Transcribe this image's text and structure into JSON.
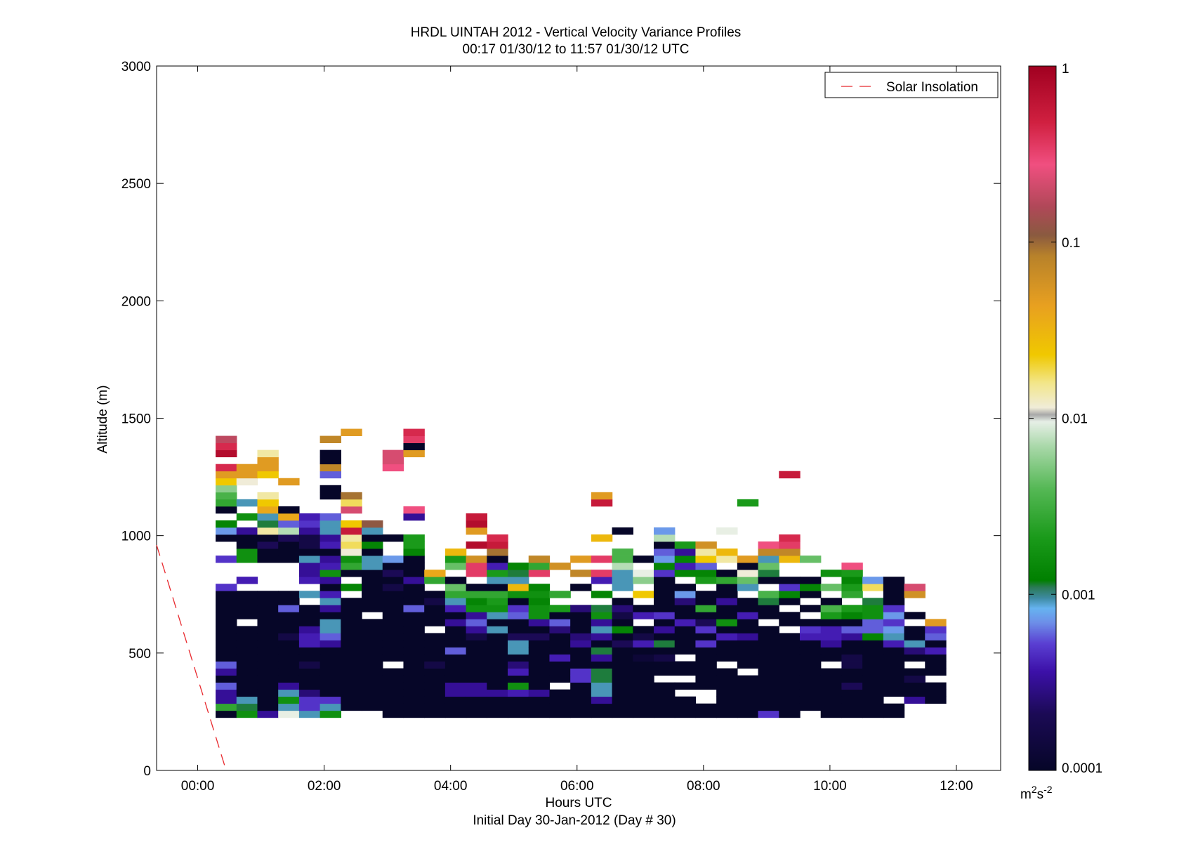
{
  "chart_data": {
    "type": "heatmap",
    "title": "HRDL UINTAH 2012 - Vertical Velocity Variance Profiles",
    "subtitle": "00:17 01/30/12 to 11:57 01/30/12  UTC",
    "xlabel": "Hours UTC",
    "xlabel2": "Initial Day 30-Jan-2012 (Day # 30)",
    "ylabel": "Altitude (m)",
    "x_unit": "hours UTC",
    "xlim": [
      -0.65,
      12.7
    ],
    "ylim": [
      0,
      3000
    ],
    "x_ticks": [
      0,
      2,
      4,
      6,
      8,
      10,
      12
    ],
    "x_tick_labels": [
      "00:00",
      "02:00",
      "04:00",
      "06:00",
      "08:00",
      "10:00",
      "12:00"
    ],
    "y_ticks": [
      0,
      500,
      1000,
      1500,
      2000,
      2500,
      3000
    ],
    "y_tick_labels": [
      "0",
      "500",
      "1000",
      "1500",
      "2000",
      "2500",
      "3000"
    ],
    "legend": {
      "entries": [
        "Solar Insolation"
      ],
      "placement": "top-right"
    },
    "series": [
      {
        "name": "Solar Insolation",
        "type": "line",
        "style": "dashed",
        "color": "#e8282d",
        "x": [
          -0.65,
          0.45
        ],
        "y": [
          960,
          0
        ]
      }
    ],
    "colorbar": {
      "scale": "log",
      "range": [
        0.0001,
        1
      ],
      "ticks": [
        0.0001,
        0.001,
        0.01,
        0.1,
        1
      ],
      "tick_labels": [
        "0.0001",
        "0.001",
        "0.01",
        "0.1",
        "1"
      ],
      "unit_base": "m",
      "unit_sup1": "2",
      "unit_mid": "s",
      "unit_sup2": "-2"
    },
    "grid": {
      "x_start": 0.29,
      "x_step": 0.333,
      "y_step": 30,
      "x_count": 36,
      "description": "columns of colored cells, one per profile; values are log10 of variance in m2 s-2"
    },
    "profiles": [
      {
        "x": 0.45,
        "bottom": 225,
        "levels": [
          -4,
          -2.5,
          -3.5,
          -3.5,
          -3.2,
          -4,
          -3.5,
          -3.2,
          -4,
          -4,
          -4,
          -4,
          -4,
          -4,
          -4,
          -4,
          -4,
          -4,
          -3.3,
          null,
          null,
          null,
          -3.3,
          null,
          null,
          -4,
          -3.1,
          -2.8,
          null,
          -4,
          -2.5,
          -2.4,
          -2.2,
          -1.6,
          -1.3,
          -0.3,
          null,
          -0.1,
          -0.3,
          -0.7
        ]
      },
      {
        "x": 0.78,
        "bottom": 225,
        "levels": [
          -2.7,
          -2.9,
          -3.0,
          -4,
          -4,
          -4,
          -4,
          -4,
          -4,
          -4,
          -4,
          -4,
          -4,
          null,
          -4,
          -4,
          -4,
          -4,
          null,
          -3.4,
          null,
          null,
          -2.7,
          -2.7,
          -4,
          -4,
          -3.5,
          null,
          -2.7,
          null,
          -3.0,
          null,
          null,
          -1.9,
          -1.3,
          -1.3
        ]
      },
      {
        "x": 1.11,
        "bottom": 225,
        "levels": [
          -3.5,
          -4,
          -4,
          -4,
          -4,
          -4,
          -4,
          -4,
          -4,
          -4,
          -4,
          -4,
          -4,
          -4,
          -4,
          -4,
          -4,
          -4,
          null,
          null,
          null,
          null,
          -4,
          -4,
          -3.7,
          -4,
          -1.8,
          -2.9,
          -3.0,
          -1.4,
          -1.6,
          -1.8,
          null,
          null,
          -1.6,
          -1.3,
          -1.3,
          -1.8
        ]
      },
      {
        "x": 1.44,
        "bottom": 225,
        "levels": [
          -2.0,
          -3.0,
          -2.7,
          -3.0,
          -3.5,
          -4,
          -4,
          -4,
          -4,
          -4,
          -4,
          -3.8,
          -4,
          -4,
          -4,
          -3.2,
          -4,
          -4,
          null,
          null,
          null,
          null,
          -4,
          -4,
          -4,
          -3.7,
          -2.1,
          -3.2,
          -1.4,
          -4,
          null,
          null,
          null,
          -1.3
        ]
      },
      {
        "x": 1.77,
        "bottom": 225,
        "levels": [
          -3.0,
          -3.3,
          -3.3,
          -3.6,
          -4,
          -4,
          -4,
          -3.8,
          -4,
          -4,
          -3.4,
          -3.4,
          -3.5,
          -4,
          -4,
          -4,
          null,
          -3.0,
          null,
          -3.4,
          -3.5,
          -3.5,
          -3.0,
          -4,
          -3.8,
          -3.8,
          -3.5,
          -3.3,
          -3.4
        ]
      },
      {
        "x": 2.1,
        "bottom": 225,
        "levels": [
          -2.7,
          -3.0,
          -3.3,
          -4,
          -4,
          -4,
          -4,
          -4,
          -4,
          -4,
          -3.5,
          -3.2,
          -3.0,
          -3.0,
          -4,
          -3.5,
          -3.0,
          -3.4,
          -4,
          -3.5,
          -2.7,
          -3.4,
          -3.5,
          -4,
          -3.4,
          -3.5,
          -3.0,
          -3.0,
          -3.2,
          null,
          null,
          -4,
          -4,
          null,
          -3.2,
          -1.1,
          -4,
          -4,
          null,
          -1.1
        ]
      },
      {
        "x": 2.43,
        "bottom": 225,
        "levels": [
          null,
          -4,
          -4,
          -4,
          -4,
          -4,
          -4,
          -4,
          -4,
          -4,
          -4,
          -4,
          -4,
          -4,
          -4,
          -4,
          -4,
          null,
          -2.8,
          null,
          -4,
          -2.5,
          -2.7,
          -1.9,
          -1.7,
          -1.8,
          -0.2,
          -1.6,
          null,
          -0.6,
          -1.7,
          -1.0,
          null,
          null,
          null,
          null,
          null,
          null,
          null,
          null,
          -1.3
        ]
      },
      {
        "x": 2.76,
        "bottom": 255,
        "levels": [
          -4,
          -4,
          -4,
          -4,
          -4,
          -4,
          -4,
          -4,
          -4,
          -4,
          -4,
          -4,
          -4,
          null,
          -4,
          -4,
          -4,
          -4,
          -4,
          -4,
          -3.0,
          -3.0,
          -4,
          -2.8,
          -4,
          -3.0,
          -0.9
        ]
      },
      {
        "x": 3.09,
        "bottom": 225,
        "levels": [
          -4,
          -4,
          -4,
          -4,
          -4,
          -4,
          -4,
          null,
          -4,
          -4,
          -4,
          -4,
          -4,
          -4,
          -4,
          -4,
          -4,
          -4,
          -3.8,
          -4,
          -3.7,
          -4,
          -3.1,
          null,
          null,
          -4,
          null,
          null,
          null,
          null,
          null,
          null,
          null,
          null,
          null,
          -0.5,
          -0.6,
          -0.6
        ]
      },
      {
        "x": 3.42,
        "bottom": 225,
        "levels": [
          -4,
          -4,
          -4,
          -4,
          -4,
          -4,
          -4,
          -4,
          -4,
          -4,
          -4,
          -4,
          -4,
          -4,
          -4,
          -3.2,
          -4,
          -4,
          -4,
          -3.5,
          -4,
          -4,
          -4,
          -2.8,
          -2.6,
          -2.6,
          null,
          null,
          -3.5,
          -0.5,
          null,
          null,
          null,
          null,
          null,
          null,
          null,
          -1.3,
          -4,
          -0.4,
          -0.3
        ]
      },
      {
        "x": 3.75,
        "bottom": 225,
        "levels": [
          -4,
          -4,
          -4,
          -4,
          -4,
          -4,
          -4,
          -3.8,
          -4,
          -4,
          -4,
          -4,
          null,
          -4,
          -4,
          -4,
          -3.8,
          -4,
          null,
          -2.5,
          -1.4
        ]
      },
      {
        "x": 4.08,
        "bottom": 225,
        "levels": [
          -4,
          -4,
          -4,
          -3.5,
          -3.5,
          -4,
          -4,
          -4,
          -4,
          -3.2,
          -4,
          -4,
          -4,
          -3.5,
          -4,
          -3.4,
          -3.0,
          -2.5,
          -2.3,
          -4,
          null,
          -2.3,
          -2.6,
          -1.5
        ]
      },
      {
        "x": 4.41,
        "bottom": 225,
        "levels": [
          -4,
          -4,
          -4,
          -3.5,
          -3.5,
          -4,
          -4,
          -4,
          -4,
          -4,
          -4,
          -3.8,
          -3.5,
          -3.2,
          -3.5,
          -2.7,
          -2.8,
          -2.5,
          -4,
          null,
          -0.4,
          -0.4,
          -1.2,
          null,
          -0.1,
          null,
          -1.3,
          -0.1,
          -0.2
        ]
      },
      {
        "x": 4.74,
        "bottom": 225,
        "levels": [
          -4,
          -4,
          -4,
          -3.5,
          -4,
          -4,
          -4,
          -4,
          -4,
          -4,
          -4,
          -4,
          -3.0,
          -4,
          -3.0,
          -2.7,
          -2.6,
          -2.5,
          -4,
          -3.0,
          -2.6,
          -3.4,
          -4,
          -1.0,
          -0.2,
          -0.3
        ]
      },
      {
        "x": 5.07,
        "bottom": 225,
        "levels": [
          -4,
          -4,
          -4,
          -3.4,
          -2.7,
          -4,
          -3.4,
          -3.6,
          -4,
          -3.0,
          -3.0,
          -3.7,
          -4,
          -4,
          -3.2,
          -3.3,
          -4,
          -2.7,
          -1.5,
          -3.0,
          -2.9,
          -2.8
        ]
      },
      {
        "x": 5.4,
        "bottom": 225,
        "levels": [
          -4,
          -4,
          -4,
          -3.5,
          -4,
          -4,
          -4,
          -4,
          -4,
          -4,
          -4,
          -3.7,
          -4,
          -3.5,
          -2.7,
          -2.7,
          -2.8,
          -2.7,
          -2.8,
          null,
          -0.4,
          -2.5,
          -1.1
        ]
      },
      {
        "x": 5.73,
        "bottom": 225,
        "levels": [
          -4,
          -4,
          -4,
          -4,
          null,
          -4,
          -4,
          -4,
          -3.4,
          -4,
          -4,
          -4,
          -3.6,
          -3.2,
          -4,
          -2.6,
          null,
          -2.5,
          null,
          null,
          null,
          -1.2
        ]
      },
      {
        "x": 6.06,
        "bottom": 225,
        "levels": [
          -4,
          -4,
          -4,
          -4,
          -4,
          -3.3,
          -3.3,
          -4,
          -4,
          -4,
          -3.5,
          -3.6,
          -4,
          -4,
          -4,
          -3.6,
          null,
          null,
          -4,
          null,
          -1.1,
          null,
          -1.3
        ]
      },
      {
        "x": 6.39,
        "bottom": 225,
        "levels": [
          -4,
          -4,
          -3.5,
          -3.0,
          -3.0,
          -2.9,
          -2.9,
          -4,
          -3.5,
          -2.9,
          -4,
          -3.5,
          -3.0,
          -3.5,
          -2.7,
          -2.9,
          null,
          -2.8,
          null,
          -3.4,
          -0.4,
          null,
          -0.4,
          null,
          null,
          -1.5,
          null,
          null,
          null,
          null,
          -0.2,
          -1.3
        ]
      },
      {
        "x": 6.72,
        "bottom": 225,
        "levels": [
          -4,
          -4,
          -4,
          -4,
          -4,
          -4,
          -4,
          -4,
          -4,
          -4,
          -3.7,
          -4,
          -2.8,
          -4,
          -3.8,
          -3.6,
          -4,
          null,
          -3.0,
          -3.0,
          -3.0,
          -2.1,
          -2.4,
          -2.4,
          null,
          null,
          -4
        ]
      },
      {
        "x": 7.05,
        "bottom": 225,
        "levels": [
          -4,
          -4,
          -4,
          -4,
          -4,
          -4,
          -4,
          -4,
          -3.9,
          -4,
          -3.4,
          -3.8,
          -4,
          null,
          -3.4,
          -4,
          null,
          -1.6,
          null,
          -2.2,
          -2.0,
          null,
          -4
        ]
      },
      {
        "x": 7.38,
        "bottom": 225,
        "levels": [
          -4,
          -4,
          -4,
          -4,
          -4,
          null,
          -4,
          -4,
          -3.8,
          -4,
          -2.9,
          -4,
          -3.5,
          -4,
          -3.3,
          -4,
          -4,
          -4,
          -4,
          -4,
          -3.3,
          -2.8,
          -3.1,
          -3.2,
          -4,
          -2.1,
          -3.1
        ]
      },
      {
        "x": 7.71,
        "bottom": 225,
        "levels": [
          -4,
          -4,
          -4,
          null,
          -4,
          null,
          -4,
          -4,
          null,
          -4,
          -4,
          -4,
          -4,
          -3.4,
          -4,
          -4,
          -3.6,
          -3.1,
          -4,
          null,
          -2.8,
          -3.4,
          -2.8,
          -3.5,
          -2.6
        ]
      },
      {
        "x": 8.04,
        "bottom": 225,
        "levels": [
          -4,
          -4,
          null,
          null,
          -4,
          -4,
          -4,
          -4,
          -4,
          -4,
          -3.3,
          -4,
          -3.3,
          -3.7,
          -4,
          -2.5,
          -4,
          -4,
          null,
          -2.6,
          -2.8,
          -3.2,
          -1.6,
          -1.8,
          -1.2
        ]
      },
      {
        "x": 8.37,
        "bottom": 225,
        "levels": [
          -4,
          -4,
          -4,
          -4,
          -4,
          -4,
          -4,
          null,
          -4,
          -4,
          -4,
          -3.4,
          -4,
          -2.7,
          -4,
          -4,
          -3.5,
          -4,
          -4,
          -2.5,
          -4,
          null,
          -1.8,
          -1.5,
          null,
          null,
          -2.0
        ]
      },
      {
        "x": 8.7,
        "bottom": 225,
        "levels": [
          -4,
          -4,
          -4,
          -4,
          -4,
          -4,
          null,
          -4,
          -4,
          -4,
          -4,
          -3.5,
          -4,
          -4,
          -3.4,
          -4,
          -4,
          null,
          -3.0,
          -2.3,
          -1.9,
          -4,
          -1.3,
          null,
          null,
          null,
          null,
          null,
          null,
          null,
          -2.6
        ]
      },
      {
        "x": 9.03,
        "bottom": 225,
        "levels": [
          -3.3,
          -4,
          -4,
          -4,
          -4,
          -4,
          -4,
          -4,
          -4,
          -4,
          -4,
          -4,
          -4,
          null,
          -4,
          -4,
          -2.9,
          -2.4,
          null,
          -4,
          -2.9,
          -2.3,
          -3.0,
          -1.1,
          -0.5
        ]
      },
      {
        "x": 9.36,
        "bottom": 225,
        "levels": [
          -4,
          -4,
          -4,
          -4,
          -4,
          -4,
          -4,
          -4,
          -4,
          -4,
          -4,
          -4,
          null,
          -4,
          -4,
          null,
          -4,
          -2.8,
          -3.3,
          -4,
          null,
          null,
          -1.5,
          -1.1,
          -0.4,
          -0.3,
          null,
          null,
          null,
          null,
          null,
          null,
          null,
          null,
          -0.2
        ]
      },
      {
        "x": 9.69,
        "bottom": 255,
        "levels": [
          -4,
          -4,
          -4,
          -4,
          -4,
          -4,
          -4,
          -4,
          -4,
          -4,
          -3.4,
          -3.3,
          -4,
          null,
          -4,
          null,
          -4,
          -2.8,
          -4,
          null,
          null,
          -2.3
        ]
      },
      {
        "x": 10.02,
        "bottom": 225,
        "levels": [
          -4,
          -4,
          -4,
          -4,
          -4,
          -4,
          -4,
          null,
          -4,
          -4,
          -3.5,
          -3.4,
          -3.4,
          -4,
          -2.6,
          -2.4,
          -4,
          null,
          -2.3,
          null,
          -2.7
        ]
      },
      {
        "x": 10.35,
        "bottom": 225,
        "levels": [
          -4,
          -4,
          -4,
          -4,
          -3.7,
          -4,
          -4,
          -3.8,
          -3.8,
          -4,
          -4,
          -3.5,
          -3.2,
          -4,
          -2.8,
          -2.6,
          null,
          -2.5,
          -2.6,
          -2.8,
          -2.6,
          -0.5
        ]
      },
      {
        "x": 10.68,
        "bottom": 225,
        "levels": [
          -4,
          -4,
          -4,
          -4,
          -4,
          -4,
          -4,
          -4,
          -4,
          -4,
          -4,
          -2.8,
          -3.2,
          -3.2,
          -2.7,
          -2.7,
          -2.9,
          null,
          -1.7,
          -3.1
        ]
      },
      {
        "x": 11.01,
        "bottom": 225,
        "levels": [
          -4,
          -4,
          null,
          -4,
          -4,
          -4,
          -4,
          -4,
          -4,
          -4,
          -3.4,
          -3.0,
          -3.1,
          -3.3,
          -3.1,
          -3.3,
          -4,
          -4,
          -4,
          -4
        ]
      },
      {
        "x": 11.34,
        "bottom": 255,
        "levels": [
          null,
          -3.5,
          -4,
          -4,
          -3.8,
          -4,
          null,
          -4,
          -3.6,
          -3.0,
          -4,
          -4,
          null,
          -4,
          null,
          null,
          -1.2,
          -0.6
        ]
      },
      {
        "x": 11.67,
        "bottom": 285,
        "levels": [
          -4,
          -4,
          -4,
          null,
          -4,
          -4,
          -4,
          -3.4,
          -4,
          -3.2,
          -3.3,
          -1.3
        ]
      }
    ]
  }
}
